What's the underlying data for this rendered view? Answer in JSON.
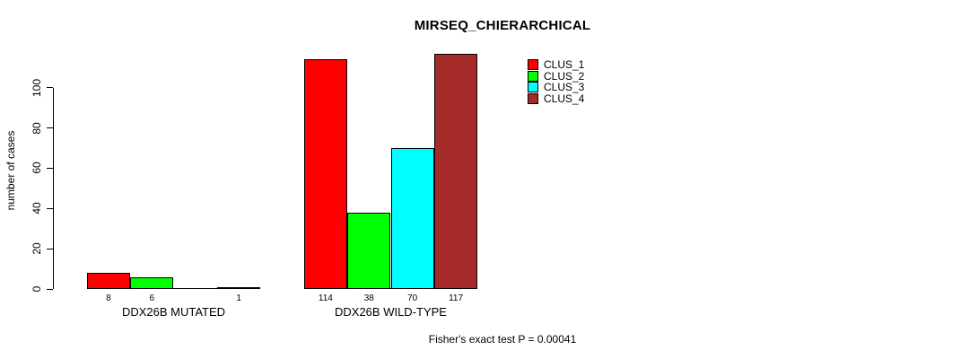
{
  "chart_data": {
    "type": "bar",
    "title": "MIRSEQ_CHIERARCHICAL",
    "xlabel": "",
    "ylabel": "number of cases",
    "ylim": [
      0,
      100
    ],
    "yticks": [
      0,
      20,
      40,
      60,
      80,
      100
    ],
    "grid": false,
    "legend_position": "top-right-inside",
    "categories": [
      "DDX26B MUTATED",
      "DDX26B WILD-TYPE"
    ],
    "series": [
      {
        "name": "CLUS_1",
        "color": "#FF0000",
        "values": [
          8,
          114
        ]
      },
      {
        "name": "CLUS_2",
        "color": "#00FF00",
        "values": [
          6,
          38
        ]
      },
      {
        "name": "CLUS_3",
        "color": "#00FFFF",
        "values": [
          0,
          70
        ]
      },
      {
        "name": "CLUS_4",
        "color": "#A52A2A",
        "values": [
          1,
          117
        ]
      }
    ],
    "bar_value_labels": [
      [
        "8",
        "6",
        "",
        "1"
      ],
      [
        "114",
        "38",
        "70",
        "117"
      ]
    ],
    "annotation": "Fisher's exact test P = 0.00041",
    "axis_color": "#000000",
    "bar_border_color": "#000000",
    "background_color": "#FFFFFF"
  }
}
